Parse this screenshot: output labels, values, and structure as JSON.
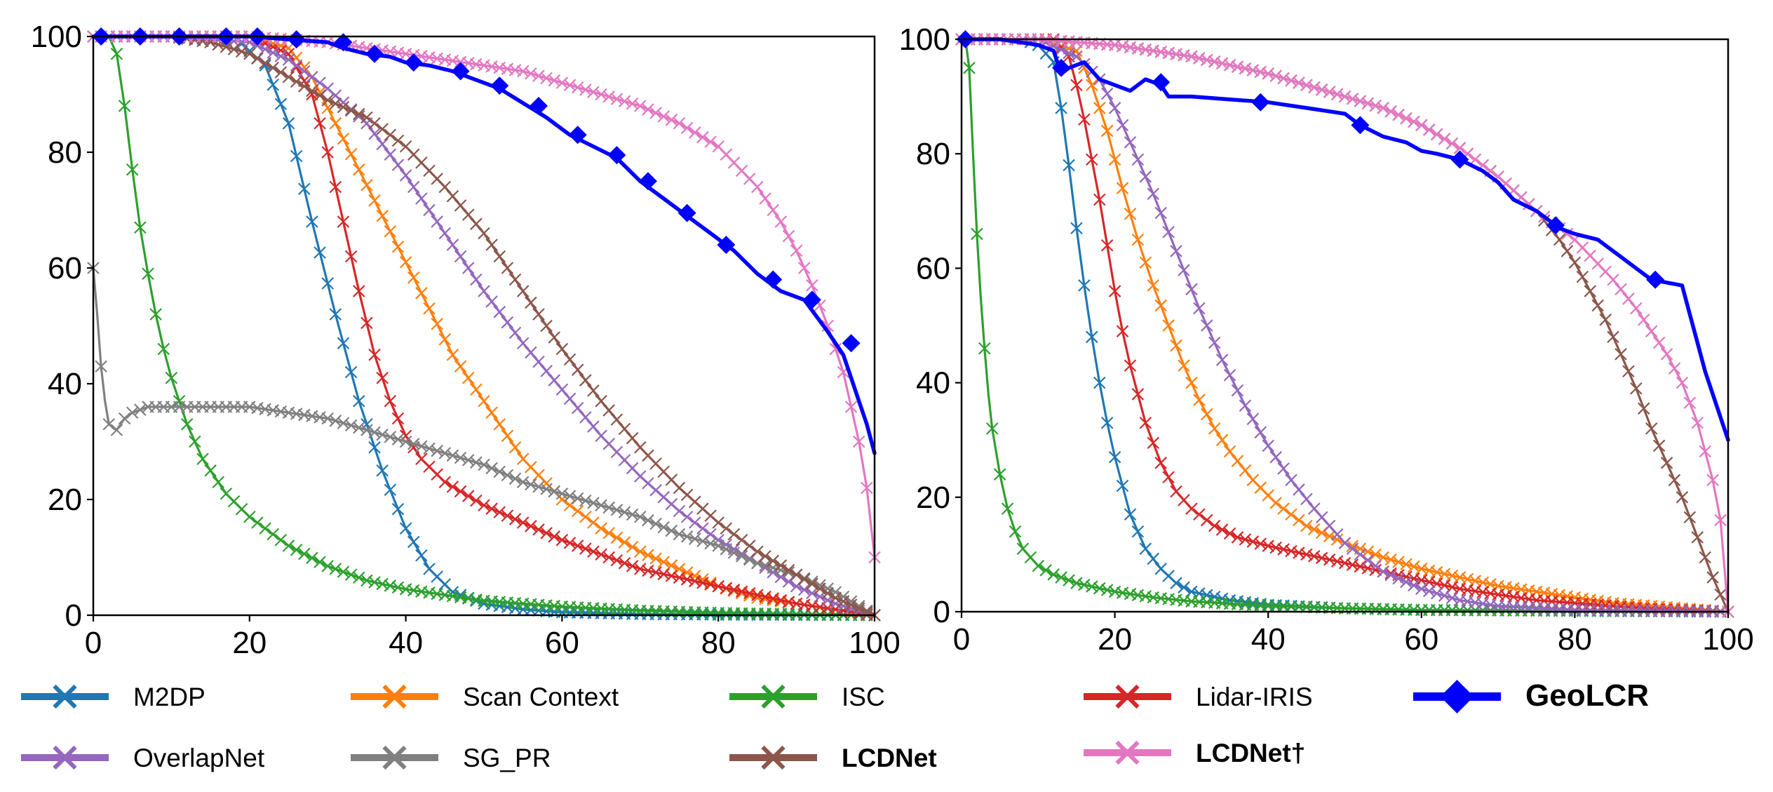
{
  "chart_data": [
    {
      "type": "line",
      "panel": "left",
      "xlim": [
        0,
        100
      ],
      "ylim": [
        0,
        100
      ],
      "xticks": [
        "0",
        "20",
        "40",
        "60",
        "80",
        "100"
      ],
      "yticks": [
        "0",
        "20",
        "40",
        "60",
        "80",
        "100"
      ],
      "series": [
        {
          "key": "m2dp",
          "name": "M2DP",
          "color": "#1f77b4",
          "marker": "x",
          "x": [
            0,
            10,
            18,
            22,
            25,
            28,
            31,
            34,
            37,
            40,
            43,
            46,
            50,
            55,
            60,
            70,
            80,
            100
          ],
          "y": [
            100,
            100,
            100,
            95,
            85,
            68,
            52,
            37,
            25,
            15,
            8,
            4,
            2,
            1,
            0.5,
            0.2,
            0.1,
            0
          ]
        },
        {
          "key": "scan_context",
          "name": "Scan Context",
          "color": "#ff7f0e",
          "marker": "x",
          "x": [
            0,
            10,
            20,
            25,
            28,
            31,
            34,
            37,
            40,
            43,
            46,
            50,
            55,
            60,
            65,
            70,
            75,
            80,
            85,
            90,
            95,
            100
          ],
          "y": [
            100,
            100,
            100,
            98,
            93,
            85,
            77,
            69,
            61,
            53,
            45,
            37,
            27,
            20,
            15,
            11,
            8,
            5,
            3,
            2,
            1,
            0
          ]
        },
        {
          "key": "isc",
          "name": "ISC",
          "color": "#2ca02c",
          "marker": "x",
          "x": [
            0,
            2,
            3,
            4,
            5,
            6,
            7,
            8,
            9,
            10,
            12,
            14,
            17,
            20,
            25,
            30,
            35,
            40,
            50,
            60,
            70,
            80,
            100
          ],
          "y": [
            100,
            100,
            97,
            88,
            77,
            67,
            59,
            52,
            46,
            41,
            33,
            27,
            21,
            17,
            12,
            8.5,
            6,
            4.5,
            2.5,
            1.5,
            0.8,
            0.4,
            0
          ]
        },
        {
          "key": "lidar_iris",
          "name": "Lidar-IRIS",
          "color": "#d62728",
          "marker": "x",
          "x": [
            0,
            10,
            20,
            25,
            28,
            30,
            32,
            34,
            36,
            38,
            40,
            42,
            45,
            50,
            55,
            60,
            70,
            80,
            90,
            100
          ],
          "y": [
            100,
            100,
            100,
            97,
            90,
            80,
            68,
            56,
            45,
            37,
            31,
            27,
            23,
            19,
            16,
            13,
            8,
            5,
            2,
            0
          ]
        },
        {
          "key": "overlapnet",
          "name": "OverlapNet",
          "color": "#9467bd",
          "marker": "x",
          "x": [
            0,
            10,
            20,
            25,
            30,
            35,
            40,
            45,
            50,
            55,
            60,
            65,
            70,
            75,
            80,
            85,
            90,
            95,
            100
          ],
          "y": [
            100,
            100,
            99,
            96,
            91,
            85,
            76,
            66,
            56,
            47,
            39,
            31,
            24,
            18,
            13,
            9,
            5,
            2,
            0
          ]
        },
        {
          "key": "sg_pr",
          "name": "SG_PR",
          "color": "#808080",
          "marker": "x",
          "x": [
            0,
            0.5,
            1,
            1.5,
            2,
            3,
            4,
            5,
            7,
            10,
            15,
            20,
            25,
            30,
            35,
            40,
            45,
            50,
            55,
            60,
            65,
            70,
            75,
            80,
            85,
            90,
            95,
            100
          ],
          "y": [
            60,
            52,
            43,
            37,
            33,
            32,
            34,
            35,
            36,
            36,
            36,
            36,
            35,
            34,
            32,
            30,
            28,
            26,
            23,
            21,
            19,
            17,
            14,
            12,
            9,
            7,
            4,
            0
          ]
        },
        {
          "key": "lcdnet",
          "name": "LCDNet",
          "color": "#8c564b",
          "marker": "x",
          "x": [
            0,
            10,
            15,
            20,
            25,
            30,
            35,
            40,
            45,
            50,
            55,
            60,
            65,
            70,
            75,
            80,
            85,
            90,
            95,
            100
          ],
          "y": [
            100,
            100,
            99,
            97,
            93,
            89,
            86,
            81,
            74,
            66,
            56,
            46,
            37,
            29,
            22,
            16,
            11,
            7,
            3,
            0
          ]
        },
        {
          "key": "lcdnet_dagger",
          "name": "LCDNet†",
          "color": "#e377c2",
          "marker": "x",
          "x": [
            0,
            10,
            20,
            30,
            40,
            50,
            55,
            60,
            65,
            70,
            75,
            80,
            85,
            88,
            90,
            92,
            94,
            96,
            97,
            98,
            99,
            100
          ],
          "y": [
            100,
            100,
            100,
            99,
            97,
            95,
            94,
            92,
            90,
            88,
            85,
            81,
            74,
            68,
            63,
            57,
            50,
            42,
            36,
            30,
            22,
            10
          ]
        },
        {
          "key": "geolcr",
          "name": "GeoLCR",
          "color": "#0000ff",
          "marker": "diamond",
          "x": [
            0,
            5,
            10,
            15,
            20,
            25,
            30,
            32,
            35,
            38,
            40,
            43,
            46,
            49,
            52,
            55,
            58,
            61,
            64,
            67,
            70,
            73,
            76,
            79,
            82,
            85,
            88,
            91,
            94,
            96,
            97,
            98,
            99,
            100
          ],
          "y": [
            100,
            100,
            100,
            100,
            100,
            99.5,
            99,
            98,
            97,
            96.5,
            95.5,
            95,
            94,
            92.5,
            91,
            88.5,
            86,
            83,
            81,
            79,
            75,
            72,
            69,
            66,
            63,
            59,
            56,
            54.5,
            49,
            45,
            41,
            37,
            33,
            28
          ],
          "marker_x": [
            1,
            6,
            11,
            17,
            21,
            26,
            32,
            36,
            41,
            47,
            52,
            57,
            62,
            67,
            71,
            76,
            81,
            87,
            92,
            97
          ],
          "marker_y": [
            100,
            100,
            100,
            100,
            100,
            99.5,
            99,
            97,
            95.5,
            94,
            91.5,
            88,
            83,
            79.5,
            75,
            69.5,
            64,
            58,
            54.5,
            47
          ]
        }
      ]
    },
    {
      "type": "line",
      "panel": "right",
      "xlim": [
        0,
        100
      ],
      "ylim": [
        0,
        100
      ],
      "xticks": [
        "0",
        "20",
        "40",
        "60",
        "80",
        "100"
      ],
      "yticks": [
        "0",
        "20",
        "40",
        "60",
        "80",
        "100"
      ],
      "series": [
        {
          "key": "m2dp",
          "name": "M2DP",
          "color": "#1f77b4",
          "marker": "x",
          "x": [
            0,
            8,
            10,
            12,
            13,
            14,
            15,
            16,
            17,
            18,
            19,
            20,
            21,
            22,
            24,
            26,
            28,
            30,
            35,
            40,
            50,
            60,
            100
          ],
          "y": [
            100,
            100,
            99,
            96,
            88,
            78,
            67,
            57,
            48,
            40,
            33,
            27,
            22,
            17,
            11,
            7.5,
            5,
            3.5,
            2,
            1.2,
            0.6,
            0.3,
            0
          ]
        },
        {
          "key": "scan_context",
          "name": "Scan Context",
          "color": "#ff7f0e",
          "marker": "x",
          "x": [
            0,
            10,
            15,
            17,
            19,
            21,
            23,
            25,
            27,
            29,
            31,
            33,
            35,
            38,
            41,
            45,
            50,
            55,
            60,
            65,
            70,
            75,
            80,
            85,
            90,
            95,
            100
          ],
          "y": [
            100,
            100,
            98,
            92,
            84,
            74,
            65,
            57,
            50,
            43,
            37,
            32,
            28,
            23,
            19,
            15,
            12,
            9.5,
            7.5,
            6,
            4.5,
            3.5,
            2.5,
            1.5,
            1,
            0.5,
            0
          ]
        },
        {
          "key": "isc",
          "name": "ISC",
          "color": "#2ca02c",
          "marker": "x",
          "x": [
            0,
            0.5,
            1,
            1.5,
            2,
            2.5,
            3,
            3.5,
            4,
            5,
            6,
            7,
            8,
            10,
            12,
            15,
            20,
            25,
            30,
            40,
            50,
            60,
            100
          ],
          "y": [
            100,
            100,
            95,
            80,
            66,
            55,
            46,
            38,
            32,
            24,
            18,
            14,
            11,
            8,
            6.5,
            5,
            3.5,
            2.5,
            1.8,
            1,
            0.6,
            0.3,
            0
          ]
        },
        {
          "key": "lidar_iris",
          "name": "Lidar-IRIS",
          "color": "#d62728",
          "marker": "x",
          "x": [
            0,
            12,
            14,
            15,
            16,
            17,
            18,
            19,
            20,
            21,
            22,
            23,
            24,
            26,
            28,
            30,
            33,
            36,
            40,
            45,
            50,
            55,
            60,
            65,
            70,
            75,
            80,
            90,
            100
          ],
          "y": [
            100,
            100,
            97,
            92,
            86,
            79,
            72,
            64,
            56,
            49,
            43,
            38,
            33,
            26,
            21,
            18,
            15,
            13,
            11.5,
            10,
            8.5,
            7,
            5.5,
            4,
            3,
            2,
            1.5,
            0.5,
            0
          ]
        },
        {
          "key": "overlapnet",
          "name": "OverlapNet",
          "color": "#9467bd",
          "marker": "x",
          "x": [
            0,
            10,
            15,
            18,
            20,
            22,
            25,
            28,
            31,
            34,
            37,
            40,
            43,
            46,
            50,
            55,
            60,
            65,
            70,
            80,
            100
          ],
          "y": [
            100,
            100,
            97,
            93,
            88,
            82,
            73,
            63,
            53,
            44,
            36,
            29,
            23,
            18,
            12,
            7,
            4,
            2,
            1,
            0.3,
            0
          ]
        },
        {
          "key": "sg_pr",
          "name": "SG_PR",
          "color": "#808080",
          "marker": "x",
          "x": [],
          "y": []
        },
        {
          "key": "lcdnet",
          "name": "LCDNet",
          "color": "#8c564b",
          "marker": "x",
          "x": [
            0,
            10,
            20,
            30,
            40,
            50,
            55,
            60,
            65,
            70,
            75,
            78,
            80,
            82,
            84,
            86,
            88,
            90,
            92,
            94,
            96,
            98,
            100
          ],
          "y": [
            100,
            100,
            99,
            97,
            94,
            90,
            88,
            85,
            81,
            76,
            70,
            65,
            61,
            56,
            51,
            45,
            39,
            32,
            26,
            20,
            13,
            6,
            0
          ]
        },
        {
          "key": "lcdnet_dagger",
          "name": "LCDNet†",
          "color": "#e377c2",
          "marker": "x",
          "x": [
            0,
            10,
            20,
            30,
            40,
            50,
            55,
            60,
            65,
            70,
            75,
            80,
            85,
            88,
            90,
            92,
            94,
            96,
            98,
            99,
            100
          ],
          "y": [
            100,
            100,
            99,
            97,
            94,
            90,
            88,
            85,
            81,
            76,
            70,
            65,
            58,
            53,
            49,
            45,
            40,
            33,
            23,
            16,
            0
          ]
        },
        {
          "key": "geolcr",
          "name": "GeoLCR",
          "color": "#0000ff",
          "marker": "diamond",
          "x": [
            0,
            5,
            10,
            12,
            12.5,
            13,
            14,
            16,
            18,
            20,
            22,
            24,
            26,
            27,
            30,
            35,
            40,
            45,
            50,
            52,
            55,
            58,
            60,
            62,
            65,
            68,
            70,
            72,
            75,
            77,
            78,
            80,
            83,
            86,
            88,
            90,
            92,
            94,
            95,
            96,
            97,
            98,
            99,
            100
          ],
          "y": [
            100,
            100,
            99,
            98,
            96,
            94,
            95,
            96,
            93,
            92,
            91,
            93,
            92,
            90,
            90,
            89.5,
            89,
            88,
            87,
            85,
            83,
            82,
            80.5,
            80,
            79,
            77,
            75,
            72,
            70,
            68,
            67,
            66,
            65,
            62,
            60,
            58,
            57.5,
            57,
            52,
            47,
            42,
            38,
            34,
            30
          ],
          "marker_x": [
            0.5,
            13,
            26,
            39,
            52,
            65,
            77.5,
            90.5
          ],
          "marker_y": [
            100,
            95,
            92.5,
            89,
            85,
            79,
            67.5,
            58
          ]
        }
      ]
    }
  ],
  "legend": [
    {
      "key": "m2dp",
      "label": "M2DP",
      "color": "#1f77b4",
      "marker": "x",
      "bold": false
    },
    {
      "key": "scan_context",
      "label": "Scan Context",
      "color": "#ff7f0e",
      "marker": "x",
      "bold": false
    },
    {
      "key": "isc",
      "label": "ISC",
      "color": "#2ca02c",
      "marker": "x",
      "bold": false
    },
    {
      "key": "lidar_iris",
      "label": "Lidar-IRIS",
      "color": "#d62728",
      "marker": "x",
      "bold": false
    },
    {
      "key": "geolcr",
      "label": "GeoLCR",
      "color": "#0000ff",
      "marker": "diamond",
      "bold": true
    },
    {
      "key": "overlapnet",
      "label": "OverlapNet",
      "color": "#9467bd",
      "marker": "x",
      "bold": false
    },
    {
      "key": "sg_pr",
      "label": "SG_PR",
      "color": "#808080",
      "marker": "x",
      "bold": false
    },
    {
      "key": "lcdnet",
      "label": "LCDNet",
      "color": "#8c564b",
      "marker": "x",
      "bold": true
    },
    {
      "key": "lcdnet_dagger",
      "label": "LCDNet†",
      "color": "#e377c2",
      "marker": "x",
      "bold": true
    }
  ]
}
